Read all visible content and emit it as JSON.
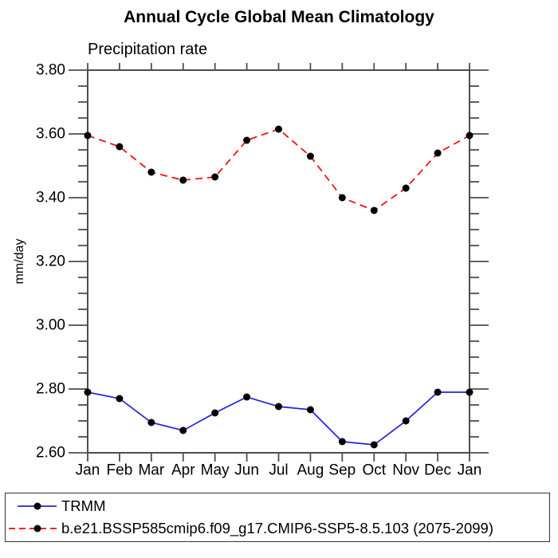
{
  "chart_data": {
    "type": "line",
    "title": "Annual Cycle Global Mean Climatology",
    "subtitle": "Precipitation rate",
    "ylabel": "mm/day",
    "xlabel": "",
    "x_categories": [
      "Jan",
      "Feb",
      "Mar",
      "Apr",
      "May",
      "Jun",
      "Jul",
      "Aug",
      "Sep",
      "Oct",
      "Nov",
      "Dec",
      "Jan"
    ],
    "ylim": [
      2.6,
      3.8
    ],
    "ytick_major_values": [
      2.6,
      2.8,
      3.0,
      3.2,
      3.4,
      3.6,
      3.8
    ],
    "ytick_major_labels": [
      "2.60",
      "2.80",
      "3.00",
      "3.20",
      "3.40",
      "3.60",
      "3.80"
    ],
    "ytick_minor_step": 0.05,
    "grid": "off",
    "legend_position": "bottom-box",
    "axis_color": "#4d4d4d",
    "marker": "filled-circle",
    "marker_color": "#000000",
    "series": [
      {
        "name": "TRMM",
        "color": "#2222dd",
        "line_style": "solid",
        "values": [
          2.79,
          2.77,
          2.695,
          2.67,
          2.725,
          2.775,
          2.745,
          2.735,
          2.635,
          2.625,
          2.7,
          2.79,
          2.79
        ]
      },
      {
        "name": "b.e21.BSSP585cmip6.f09_g17.CMIP6-SSP5-8.5.103 (2075-2099)",
        "color": "#ff0000",
        "line_style": "dashed",
        "values": [
          3.595,
          3.56,
          3.48,
          3.455,
          3.465,
          3.58,
          3.615,
          3.53,
          3.4,
          3.36,
          3.43,
          3.54,
          3.595
        ]
      }
    ]
  }
}
